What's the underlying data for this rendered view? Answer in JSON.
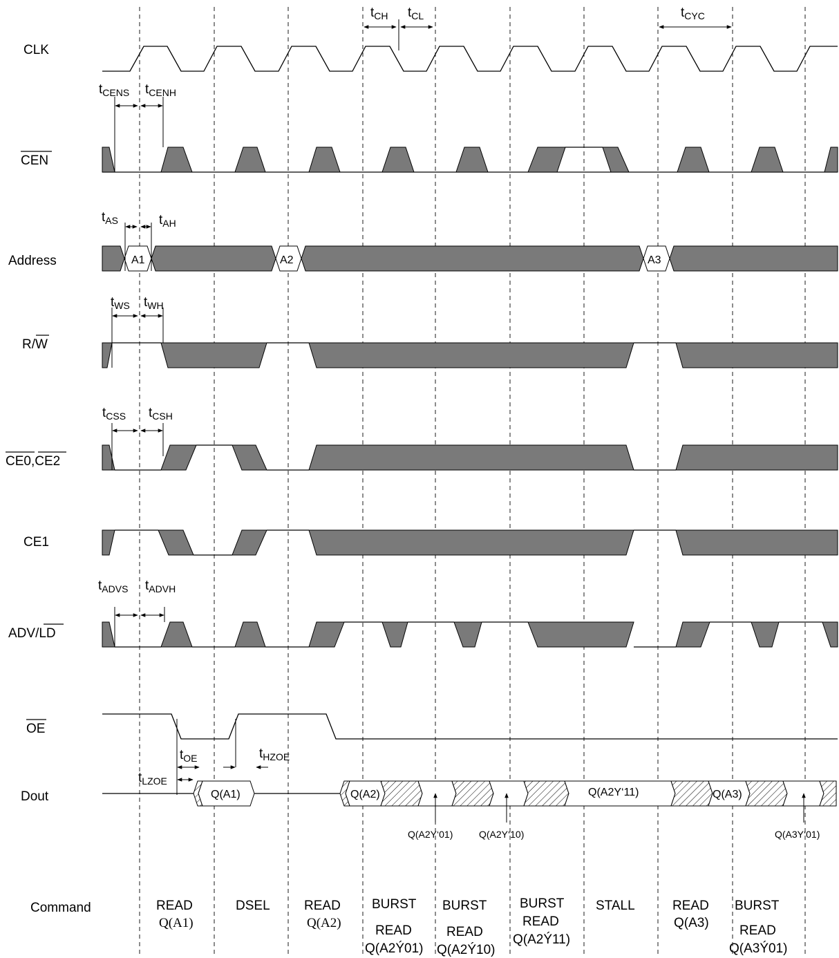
{
  "signals": [
    {
      "key": "clk",
      "label": "CLK",
      "overline": ""
    },
    {
      "key": "cen",
      "label": "",
      "overline": "CEN"
    },
    {
      "key": "address",
      "label": "Address",
      "overline": ""
    },
    {
      "key": "rw",
      "label": "R/",
      "overline": "W"
    },
    {
      "key": "ce02",
      "label": "",
      "overline": "CE0,CE2"
    },
    {
      "key": "ce1",
      "label": "CE1",
      "overline": ""
    },
    {
      "key": "advld",
      "label": "ADV/",
      "overline": "LD"
    },
    {
      "key": "oe",
      "label": "",
      "overline": "OE"
    },
    {
      "key": "dout",
      "label": "Dout",
      "overline": ""
    },
    {
      "key": "command",
      "label": "Command",
      "overline": ""
    }
  ],
  "timing_labels": {
    "tCH": {
      "t": "t",
      "sub": "CH"
    },
    "tCL": {
      "t": "t",
      "sub": "CL"
    },
    "tCYC": {
      "t": "t",
      "sub": "CYC"
    },
    "tCENS": {
      "t": "t",
      "sub": "CENS"
    },
    "tCENH": {
      "t": "t",
      "sub": "CENH"
    },
    "tAS": {
      "t": "t",
      "sub": "AS"
    },
    "tAH": {
      "t": "t",
      "sub": "AH"
    },
    "tWS": {
      "t": "t",
      "sub": "WS"
    },
    "tWH": {
      "t": "t",
      "sub": "WH"
    },
    "tCSS": {
      "t": "t",
      "sub": "CSS"
    },
    "tCSH": {
      "t": "t",
      "sub": "CSH"
    },
    "tADVS": {
      "t": "t",
      "sub": "ADVS"
    },
    "tADVH": {
      "t": "t",
      "sub": "ADVH"
    },
    "tOE": {
      "t": "t",
      "sub": "OE"
    },
    "tHZOE": {
      "t": "t",
      "sub": "HZOE"
    },
    "tLZOE": {
      "t": "t",
      "sub": "LZOE"
    }
  },
  "address_values": [
    "A1",
    "A2",
    "A3"
  ],
  "dout_values": [
    "Q(A1)",
    "Q(A2)",
    "Q(A2Y‘11)",
    "Q(A3)"
  ],
  "dout_annotations": [
    "Q(A2Y‘01)",
    "Q(A2Y‘10)",
    "Q(A3Y‘01)"
  ],
  "commands": [
    {
      "line1": "READ",
      "line2": "Q(A1)",
      "line3": ""
    },
    {
      "line1": "DSEL",
      "line2": "",
      "line3": ""
    },
    {
      "line1": "READ",
      "line2": "Q(A2)",
      "line3": ""
    },
    {
      "line1": "BURST",
      "line2": "READ",
      "line3": "Q(A2Ý01)"
    },
    {
      "line1": "BURST",
      "line2": "READ",
      "line3": "Q(A2Ý10)"
    },
    {
      "line1": "BURST",
      "line2": "READ",
      "line3": "Q(A2Ý11)"
    },
    {
      "line1": "STALL",
      "line2": "",
      "line3": ""
    },
    {
      "line1": "READ",
      "line2": "Q(A3)",
      "line3": ""
    },
    {
      "line1": "BURST",
      "line2": "READ",
      "line3": "Q(A3Ý01)"
    }
  ]
}
